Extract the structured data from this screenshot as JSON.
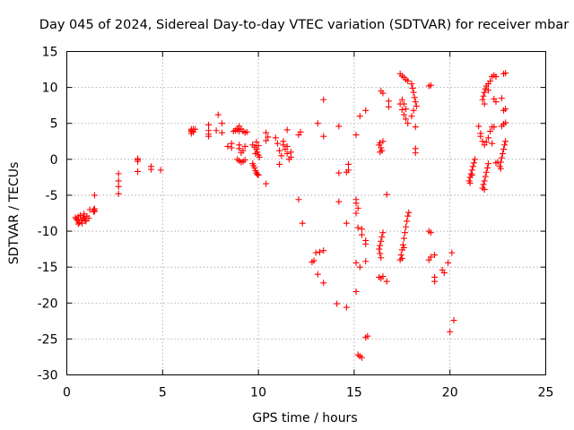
{
  "chart_data": {
    "type": "scatter",
    "title": "Day 045 of 2024, Sidereal Day-to-day VTEC variation (SDTVAR) for receiver mbar",
    "xlabel": "GPS time / hours",
    "ylabel": "SDTVAR / TECUs",
    "xlim": [
      0,
      25
    ],
    "ylim": [
      -30,
      15
    ],
    "x_ticks": [
      0,
      5,
      10,
      15,
      20,
      25
    ],
    "y_ticks": [
      -30,
      -25,
      -20,
      -15,
      -10,
      -5,
      0,
      5,
      10,
      15
    ],
    "x_tick_labels": [
      "0",
      "5",
      "10",
      "15",
      "20",
      "25"
    ],
    "y_tick_labels": [
      "-30",
      "-25",
      "-20",
      "-15",
      "-10",
      "-5",
      "0",
      "5",
      "10",
      "15"
    ],
    "grid": true,
    "marker": "+",
    "color": "#ff0000",
    "series": [
      {
        "name": "SDTVAR",
        "points": [
          [
            0.45,
            -8.1
          ],
          [
            0.5,
            -8.3
          ],
          [
            0.55,
            -8.5
          ],
          [
            0.6,
            -8.0
          ],
          [
            0.65,
            -8.8
          ],
          [
            0.7,
            -7.8
          ],
          [
            0.75,
            -8.4
          ],
          [
            0.8,
            -8.9
          ],
          [
            0.85,
            -8.2
          ],
          [
            0.9,
            -7.6
          ],
          [
            0.95,
            -8.5
          ],
          [
            1.05,
            -7.9
          ],
          [
            1.15,
            -8.2
          ],
          [
            0.6,
            -9.0
          ],
          [
            1.4,
            -7.0
          ],
          [
            1.4,
            -7.3
          ],
          [
            1.45,
            -7.2
          ],
          [
            1.45,
            -6.9
          ],
          [
            1.2,
            -7.0
          ],
          [
            1.45,
            -5.0
          ],
          [
            0.9,
            -8.0
          ],
          [
            1.0,
            -8.6
          ],
          [
            2.7,
            -2.0
          ],
          [
            2.7,
            -3.0
          ],
          [
            2.7,
            -3.8
          ],
          [
            2.7,
            -4.8
          ],
          [
            3.7,
            -0.1
          ],
          [
            3.7,
            0.1
          ],
          [
            3.7,
            -0.3
          ],
          [
            3.7,
            -1.7
          ],
          [
            4.4,
            -1.0
          ],
          [
            4.4,
            -1.4
          ],
          [
            4.9,
            -1.5
          ],
          [
            6.5,
            3.6
          ],
          [
            6.5,
            3.9
          ],
          [
            6.5,
            4.2
          ],
          [
            6.5,
            4.0
          ],
          [
            6.6,
            3.8
          ],
          [
            6.6,
            4.2
          ],
          [
            6.7,
            4.2
          ],
          [
            7.4,
            4.8
          ],
          [
            7.4,
            4.0
          ],
          [
            7.4,
            3.5
          ],
          [
            7.4,
            3.2
          ],
          [
            7.8,
            4.0
          ],
          [
            7.9,
            6.2
          ],
          [
            8.1,
            5.0
          ],
          [
            8.1,
            3.7
          ],
          [
            8.4,
            1.8
          ],
          [
            8.6,
            2.2
          ],
          [
            8.6,
            1.6
          ],
          [
            8.7,
            3.9
          ],
          [
            8.8,
            4.0
          ],
          [
            8.9,
            4.3
          ],
          [
            9.0,
            4.6
          ],
          [
            9.1,
            4.2
          ],
          [
            9.2,
            3.9
          ],
          [
            9.3,
            3.7
          ],
          [
            9.4,
            3.8
          ],
          [
            9.0,
            3.9
          ],
          [
            8.9,
            4.1
          ],
          [
            8.9,
            0.0
          ],
          [
            9.0,
            -0.2
          ],
          [
            9.1,
            -0.4
          ],
          [
            9.2,
            -0.3
          ],
          [
            9.3,
            -0.1
          ],
          [
            9.1,
            0.9
          ],
          [
            9.0,
            1.5
          ],
          [
            9.2,
            1.2
          ],
          [
            9.0,
            2.0
          ],
          [
            9.3,
            1.8
          ],
          [
            9.7,
            -0.6
          ],
          [
            9.75,
            -0.9
          ],
          [
            9.8,
            -1.2
          ],
          [
            9.85,
            -1.6
          ],
          [
            9.9,
            -1.9
          ],
          [
            9.95,
            -2.1
          ],
          [
            10.0,
            -2.2
          ],
          [
            9.7,
            2.0
          ],
          [
            9.8,
            1.7
          ],
          [
            9.9,
            1.4
          ],
          [
            9.95,
            1.0
          ],
          [
            10.0,
            0.6
          ],
          [
            10.05,
            0.3
          ],
          [
            9.85,
            0.8
          ],
          [
            9.9,
            2.4
          ],
          [
            10.0,
            1.9
          ],
          [
            10.4,
            3.7
          ],
          [
            10.4,
            2.6
          ],
          [
            10.4,
            -3.4
          ],
          [
            10.5,
            3.1
          ],
          [
            10.9,
            3.0
          ],
          [
            11.0,
            2.2
          ],
          [
            11.1,
            1.2
          ],
          [
            11.1,
            -0.7
          ],
          [
            11.2,
            0.5
          ],
          [
            11.3,
            2.0
          ],
          [
            11.3,
            2.5
          ],
          [
            11.4,
            1.4
          ],
          [
            11.5,
            0.8
          ],
          [
            11.5,
            1.8
          ],
          [
            11.5,
            4.1
          ],
          [
            11.6,
            0.0
          ],
          [
            11.7,
            1.0
          ],
          [
            11.7,
            0.3
          ],
          [
            12.2,
            3.8
          ],
          [
            12.1,
            3.4
          ],
          [
            12.1,
            -5.6
          ],
          [
            12.3,
            -8.9
          ],
          [
            13.1,
            5.0
          ],
          [
            13.4,
            8.3
          ],
          [
            13.4,
            3.2
          ],
          [
            12.8,
            -14.3
          ],
          [
            12.9,
            -14.1
          ],
          [
            13.0,
            -13.0
          ],
          [
            13.2,
            -12.9
          ],
          [
            13.4,
            -12.7
          ],
          [
            13.1,
            -16.0
          ],
          [
            13.4,
            -17.2
          ],
          [
            14.1,
            -20.1
          ],
          [
            14.2,
            4.6
          ],
          [
            14.2,
            -1.9
          ],
          [
            14.2,
            -5.9
          ],
          [
            14.6,
            -20.6
          ],
          [
            14.7,
            -0.7
          ],
          [
            14.7,
            -1.5
          ],
          [
            14.6,
            -8.9
          ],
          [
            14.6,
            -1.8
          ],
          [
            15.1,
            -5.6
          ],
          [
            15.1,
            -6.1
          ],
          [
            15.2,
            -6.8
          ],
          [
            15.1,
            -7.5
          ],
          [
            15.2,
            -9.5
          ],
          [
            15.4,
            -9.7
          ],
          [
            15.4,
            -10.5
          ],
          [
            15.1,
            3.4
          ],
          [
            15.3,
            6.0
          ],
          [
            15.6,
            6.8
          ],
          [
            15.1,
            -14.4
          ],
          [
            15.3,
            -15.0
          ],
          [
            15.6,
            -14.2
          ],
          [
            15.1,
            -18.4
          ],
          [
            15.6,
            -11.3
          ],
          [
            15.6,
            -11.8
          ],
          [
            15.2,
            -27.2
          ],
          [
            15.3,
            -27.4
          ],
          [
            15.4,
            -27.6
          ],
          [
            15.6,
            -24.8
          ],
          [
            15.7,
            -24.6
          ],
          [
            16.3,
            2.0
          ],
          [
            16.35,
            2.3
          ],
          [
            16.4,
            1.6
          ],
          [
            16.45,
            1.2
          ],
          [
            16.5,
            2.5
          ],
          [
            16.35,
            1.0
          ],
          [
            16.4,
            9.5
          ],
          [
            16.5,
            9.2
          ],
          [
            16.8,
            8.1
          ],
          [
            16.8,
            7.3
          ],
          [
            16.7,
            -4.9
          ],
          [
            16.3,
            -16.4
          ],
          [
            16.4,
            -16.6
          ],
          [
            16.5,
            -16.3
          ],
          [
            16.7,
            -17.0
          ],
          [
            16.3,
            -12.5
          ],
          [
            16.35,
            -12.0
          ],
          [
            16.4,
            -11.4
          ],
          [
            16.45,
            -10.8
          ],
          [
            16.5,
            -10.2
          ],
          [
            16.35,
            -13.1
          ],
          [
            16.4,
            -13.7
          ],
          [
            17.4,
            -14.0
          ],
          [
            17.45,
            -13.3
          ],
          [
            17.5,
            -12.6
          ],
          [
            17.55,
            -11.9
          ],
          [
            17.6,
            -11.0
          ],
          [
            17.65,
            -10.2
          ],
          [
            17.7,
            -9.4
          ],
          [
            17.75,
            -8.6
          ],
          [
            17.8,
            -7.9
          ],
          [
            17.85,
            -7.4
          ],
          [
            17.5,
            -13.8
          ],
          [
            17.6,
            -12.3
          ],
          [
            17.4,
            11.9
          ],
          [
            17.5,
            11.6
          ],
          [
            17.6,
            11.4
          ],
          [
            17.7,
            11.1
          ],
          [
            17.8,
            10.9
          ],
          [
            17.5,
            8.3
          ],
          [
            17.6,
            7.7
          ],
          [
            17.7,
            7.0
          ],
          [
            17.6,
            6.2
          ],
          [
            17.7,
            5.6
          ],
          [
            17.8,
            5.0
          ],
          [
            17.5,
            6.9
          ],
          [
            17.4,
            7.7
          ],
          [
            18.0,
            10.5
          ],
          [
            18.05,
            9.9
          ],
          [
            18.1,
            9.3
          ],
          [
            18.15,
            8.6
          ],
          [
            18.2,
            8.0
          ],
          [
            18.25,
            7.4
          ],
          [
            18.1,
            6.8
          ],
          [
            18.0,
            6.0
          ],
          [
            18.2,
            4.5
          ],
          [
            18.2,
            1.5
          ],
          [
            18.2,
            0.9
          ],
          [
            18.9,
            10.2
          ],
          [
            19.0,
            10.3
          ],
          [
            18.9,
            -10.0
          ],
          [
            19.0,
            -10.2
          ],
          [
            18.9,
            -14.0
          ],
          [
            19.0,
            -13.6
          ],
          [
            19.2,
            -13.3
          ],
          [
            19.2,
            -16.4
          ],
          [
            19.2,
            -17.0
          ],
          [
            19.6,
            -15.4
          ],
          [
            19.7,
            -15.8
          ],
          [
            19.9,
            -14.4
          ],
          [
            20.0,
            -24.0
          ],
          [
            20.1,
            -13.0
          ],
          [
            20.2,
            -22.4
          ],
          [
            21.0,
            -3.0
          ],
          [
            21.05,
            -2.5
          ],
          [
            21.1,
            -2.0
          ],
          [
            21.15,
            -1.5
          ],
          [
            21.2,
            -1.0
          ],
          [
            21.25,
            -0.5
          ],
          [
            21.3,
            0.0
          ],
          [
            21.05,
            -3.3
          ],
          [
            21.15,
            -2.2
          ],
          [
            21.5,
            4.6
          ],
          [
            21.6,
            3.6
          ],
          [
            21.6,
            3.2
          ],
          [
            21.7,
            2.5
          ],
          [
            21.8,
            2.0
          ],
          [
            21.9,
            2.4
          ],
          [
            22.0,
            3.0
          ],
          [
            22.1,
            3.9
          ],
          [
            22.2,
            4.5
          ],
          [
            21.7,
            -4.0
          ],
          [
            21.75,
            -3.5
          ],
          [
            21.8,
            -3.0
          ],
          [
            21.85,
            -2.4
          ],
          [
            21.9,
            -1.8
          ],
          [
            21.95,
            -1.2
          ],
          [
            22.0,
            -0.6
          ],
          [
            21.8,
            -4.2
          ],
          [
            21.7,
            8.3
          ],
          [
            21.75,
            8.8
          ],
          [
            21.8,
            9.3
          ],
          [
            21.85,
            9.8
          ],
          [
            21.9,
            10.2
          ],
          [
            22.0,
            10.5
          ],
          [
            22.1,
            10.9
          ],
          [
            22.2,
            11.5
          ],
          [
            22.3,
            11.7
          ],
          [
            22.4,
            11.5
          ],
          [
            21.8,
            7.7
          ],
          [
            22.0,
            9.6
          ],
          [
            22.2,
            2.2
          ],
          [
            22.3,
            4.5
          ],
          [
            22.3,
            8.4
          ],
          [
            22.4,
            8.0
          ],
          [
            22.4,
            -0.5
          ],
          [
            22.5,
            -0.4
          ],
          [
            22.7,
            8.5
          ],
          [
            22.6,
            -1.0
          ],
          [
            22.65,
            -0.4
          ],
          [
            22.7,
            0.2
          ],
          [
            22.75,
            0.8
          ],
          [
            22.8,
            1.4
          ],
          [
            22.85,
            2.0
          ],
          [
            22.9,
            2.5
          ],
          [
            22.65,
            -1.3
          ],
          [
            22.7,
            4.6
          ],
          [
            22.8,
            4.9
          ],
          [
            22.9,
            5.1
          ],
          [
            22.8,
            6.8
          ],
          [
            22.9,
            7.0
          ],
          [
            22.8,
            11.9
          ],
          [
            22.9,
            12.0
          ]
        ]
      }
    ]
  }
}
